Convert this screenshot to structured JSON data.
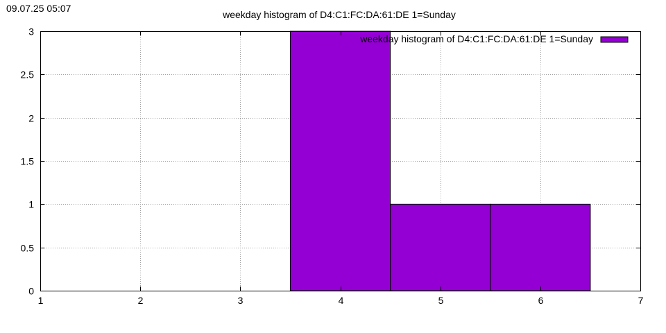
{
  "timestamp": "09.07.25 05:07",
  "chart_data": {
    "type": "bar",
    "title": "weekday histogram of D4:C1:FC:DA:61:DE 1=Sunday",
    "xlabel": "",
    "ylabel": "",
    "xlim": [
      1,
      7
    ],
    "ylim": [
      0,
      3
    ],
    "x_ticks": [
      "1",
      "2",
      "3",
      "4",
      "5",
      "6",
      "7"
    ],
    "y_ticks": [
      "0",
      "0.5",
      "1",
      "1.5",
      "2",
      "2.5",
      "3"
    ],
    "grid": true,
    "legend_position": "top-right",
    "series": [
      {
        "name": "weekday histogram of D4:C1:FC:DA:61:DE 1=Sunday",
        "color": "#9400d3",
        "points": [
          {
            "x": 4,
            "y": 3
          },
          {
            "x": 5,
            "y": 1
          },
          {
            "x": 6,
            "y": 1
          }
        ]
      }
    ]
  }
}
